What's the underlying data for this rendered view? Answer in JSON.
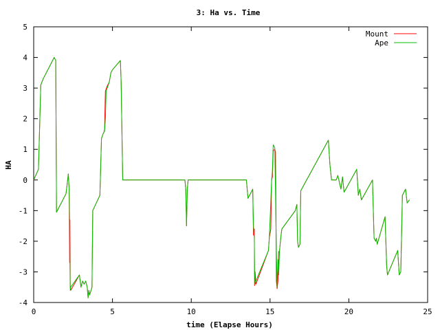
{
  "chart_data": {
    "type": "line",
    "title": "3: Ha vs. Time",
    "xlabel": "time (Elapse Hours)",
    "ylabel": "HA",
    "xlim": [
      0,
      25
    ],
    "ylim": [
      -4,
      5
    ],
    "xticks": [
      0,
      5,
      10,
      15,
      20,
      25
    ],
    "yticks": [
      -4,
      -3,
      -2,
      -1,
      0,
      1,
      2,
      3,
      4,
      5
    ],
    "grid": false,
    "legend_position": "top-right",
    "series": [
      {
        "name": "Mount",
        "color": "#ff0000",
        "points": [
          [
            0.0,
            0.0
          ],
          [
            0.3,
            0.35
          ],
          [
            0.35,
            1.2
          ],
          [
            0.45,
            3.1
          ],
          [
            0.6,
            3.3
          ],
          [
            1.3,
            4.0
          ],
          [
            1.4,
            3.9
          ],
          [
            1.45,
            -1.05
          ],
          [
            2.05,
            -0.45
          ],
          [
            2.1,
            -0.25
          ],
          [
            2.2,
            0.2
          ],
          [
            2.25,
            -0.3
          ],
          [
            2.28,
            -2.7
          ],
          [
            2.3,
            -1.3
          ],
          [
            2.32,
            -3.45
          ],
          [
            2.35,
            -3.6
          ],
          [
            2.9,
            -3.1
          ],
          [
            3.0,
            -3.5
          ],
          [
            3.1,
            -3.3
          ],
          [
            3.2,
            -3.4
          ],
          [
            3.3,
            -3.3
          ],
          [
            3.4,
            -3.5
          ],
          [
            3.45,
            -3.85
          ],
          [
            3.5,
            -3.6
          ],
          [
            3.55,
            -3.75
          ],
          [
            3.7,
            -3.5
          ],
          [
            3.75,
            -1.0
          ],
          [
            4.2,
            -0.5
          ],
          [
            4.3,
            1.35
          ],
          [
            4.4,
            1.5
          ],
          [
            4.45,
            1.55
          ],
          [
            4.5,
            1.65
          ],
          [
            4.55,
            2.9
          ],
          [
            4.65,
            3.05
          ],
          [
            4.8,
            3.2
          ],
          [
            4.9,
            3.5
          ],
          [
            5.0,
            3.6
          ],
          [
            5.5,
            3.9
          ],
          [
            5.55,
            3.2
          ],
          [
            5.65,
            0.0
          ],
          [
            9.6,
            0.0
          ],
          [
            9.65,
            -0.3
          ],
          [
            9.7,
            -1.5
          ],
          [
            9.75,
            -0.3
          ],
          [
            9.8,
            0.0
          ],
          [
            13.5,
            0.0
          ],
          [
            13.6,
            -0.6
          ],
          [
            13.9,
            -0.3
          ],
          [
            13.95,
            -1.8
          ],
          [
            14.0,
            -1.6
          ],
          [
            14.02,
            -3.45
          ],
          [
            14.05,
            -3.0
          ],
          [
            14.1,
            -3.4
          ],
          [
            14.9,
            -2.3
          ],
          [
            14.95,
            -1.9
          ],
          [
            15.05,
            -1.6
          ],
          [
            15.1,
            0.0
          ],
          [
            15.15,
            0.1
          ],
          [
            15.2,
            0.95
          ],
          [
            15.3,
            1.0
          ],
          [
            15.35,
            0.9
          ],
          [
            15.4,
            -3.3
          ],
          [
            15.45,
            -3.55
          ],
          [
            15.5,
            -3.3
          ],
          [
            15.55,
            -2.35
          ],
          [
            15.6,
            -2.3
          ],
          [
            15.7,
            -1.8
          ],
          [
            15.75,
            -1.6
          ],
          [
            16.6,
            -1.0
          ],
          [
            16.7,
            -0.8
          ],
          [
            16.75,
            -2.0
          ],
          [
            16.8,
            -2.2
          ],
          [
            16.9,
            -2.1
          ],
          [
            16.95,
            -0.35
          ],
          [
            18.7,
            1.3
          ],
          [
            18.8,
            0.5
          ],
          [
            18.9,
            0.0
          ],
          [
            19.2,
            0.0
          ],
          [
            19.3,
            0.15
          ],
          [
            19.5,
            -0.3
          ],
          [
            19.6,
            0.1
          ],
          [
            19.7,
            -0.4
          ],
          [
            20.5,
            0.35
          ],
          [
            20.6,
            -0.5
          ],
          [
            20.7,
            -0.3
          ],
          [
            20.8,
            -0.65
          ],
          [
            21.5,
            0.0
          ],
          [
            21.6,
            -1.9
          ],
          [
            21.7,
            -2.0
          ],
          [
            21.75,
            -1.9
          ],
          [
            21.8,
            -2.1
          ],
          [
            22.3,
            -1.2
          ],
          [
            22.4,
            -2.8
          ],
          [
            22.45,
            -3.1
          ],
          [
            23.1,
            -2.3
          ],
          [
            23.2,
            -3.1
          ],
          [
            23.3,
            -3.0
          ],
          [
            23.4,
            -0.5
          ],
          [
            23.6,
            -0.3
          ],
          [
            23.7,
            -0.75
          ],
          [
            23.85,
            -0.65
          ]
        ]
      },
      {
        "name": "Ape",
        "color": "#00c000",
        "points": [
          [
            0.0,
            0.0
          ],
          [
            0.3,
            0.35
          ],
          [
            0.35,
            1.2
          ],
          [
            0.45,
            3.1
          ],
          [
            0.6,
            3.3
          ],
          [
            1.3,
            4.0
          ],
          [
            1.4,
            3.9
          ],
          [
            1.45,
            -1.05
          ],
          [
            2.05,
            -0.45
          ],
          [
            2.1,
            -0.25
          ],
          [
            2.2,
            0.2
          ],
          [
            2.25,
            -0.3
          ],
          [
            2.28,
            -1.3
          ],
          [
            2.3,
            -2.7
          ],
          [
            2.32,
            -3.6
          ],
          [
            2.35,
            -3.5
          ],
          [
            2.9,
            -3.1
          ],
          [
            3.0,
            -3.5
          ],
          [
            3.1,
            -3.3
          ],
          [
            3.2,
            -3.4
          ],
          [
            3.3,
            -3.3
          ],
          [
            3.4,
            -3.5
          ],
          [
            3.45,
            -3.85
          ],
          [
            3.5,
            -3.6
          ],
          [
            3.55,
            -3.75
          ],
          [
            3.7,
            -3.5
          ],
          [
            3.75,
            -1.0
          ],
          [
            4.2,
            -0.5
          ],
          [
            4.3,
            1.35
          ],
          [
            4.4,
            1.5
          ],
          [
            4.45,
            1.55
          ],
          [
            4.5,
            1.6
          ],
          [
            4.55,
            2.0
          ],
          [
            4.6,
            2.9
          ],
          [
            4.8,
            3.2
          ],
          [
            4.9,
            3.5
          ],
          [
            5.0,
            3.6
          ],
          [
            5.5,
            3.9
          ],
          [
            5.55,
            3.2
          ],
          [
            5.65,
            0.0
          ],
          [
            9.6,
            0.0
          ],
          [
            9.65,
            -0.3
          ],
          [
            9.7,
            -1.5
          ],
          [
            9.75,
            -0.3
          ],
          [
            9.8,
            0.0
          ],
          [
            13.5,
            0.0
          ],
          [
            13.6,
            -0.6
          ],
          [
            13.9,
            -0.3
          ],
          [
            13.95,
            -1.5
          ],
          [
            14.0,
            -1.9
          ],
          [
            14.02,
            -3.0
          ],
          [
            14.05,
            -3.4
          ],
          [
            14.1,
            -3.3
          ],
          [
            14.9,
            -2.3
          ],
          [
            14.95,
            -1.9
          ],
          [
            15.05,
            -0.7
          ],
          [
            15.1,
            0.0
          ],
          [
            15.15,
            0.3
          ],
          [
            15.2,
            1.15
          ],
          [
            15.3,
            1.05
          ],
          [
            15.35,
            -0.5
          ],
          [
            15.4,
            -2.3
          ],
          [
            15.45,
            -3.5
          ],
          [
            15.5,
            -2.6
          ],
          [
            15.55,
            -3.1
          ],
          [
            15.6,
            -2.3
          ],
          [
            15.7,
            -1.8
          ],
          [
            15.75,
            -1.6
          ],
          [
            16.6,
            -1.0
          ],
          [
            16.7,
            -0.8
          ],
          [
            16.75,
            -2.0
          ],
          [
            16.8,
            -2.2
          ],
          [
            16.9,
            -2.1
          ],
          [
            16.95,
            -0.35
          ],
          [
            18.7,
            1.3
          ],
          [
            18.8,
            0.5
          ],
          [
            18.9,
            0.0
          ],
          [
            19.2,
            0.0
          ],
          [
            19.3,
            0.15
          ],
          [
            19.5,
            -0.3
          ],
          [
            19.6,
            0.1
          ],
          [
            19.7,
            -0.4
          ],
          [
            20.5,
            0.35
          ],
          [
            20.6,
            -0.5
          ],
          [
            20.7,
            -0.3
          ],
          [
            20.8,
            -0.65
          ],
          [
            21.5,
            0.0
          ],
          [
            21.6,
            -1.9
          ],
          [
            21.7,
            -2.0
          ],
          [
            21.75,
            -1.9
          ],
          [
            21.8,
            -2.1
          ],
          [
            22.3,
            -1.2
          ],
          [
            22.4,
            -2.8
          ],
          [
            22.45,
            -3.1
          ],
          [
            23.1,
            -2.3
          ],
          [
            23.2,
            -3.1
          ],
          [
            23.3,
            -3.0
          ],
          [
            23.4,
            -0.5
          ],
          [
            23.6,
            -0.3
          ],
          [
            23.7,
            -0.75
          ],
          [
            23.85,
            -0.65
          ]
        ]
      }
    ]
  }
}
